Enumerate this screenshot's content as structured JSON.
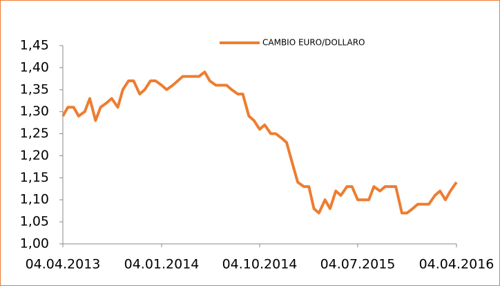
{
  "chart_data": {
    "type": "line",
    "x": [
      "04.04.2013",
      "18.04.2013",
      "04.05.2013",
      "18.05.2013",
      "04.06.2013",
      "18.06.2013",
      "04.07.2013",
      "18.07.2013",
      "04.08.2013",
      "18.08.2013",
      "04.09.2013",
      "18.09.2013",
      "04.10.2013",
      "18.10.2013",
      "04.11.2013",
      "18.11.2013",
      "04.12.2013",
      "18.12.2013",
      "04.01.2014",
      "18.01.2014",
      "04.02.2014",
      "18.02.2014",
      "04.03.2014",
      "18.03.2014",
      "04.04.2014",
      "18.04.2014",
      "04.05.2014",
      "18.05.2014",
      "04.06.2014",
      "18.06.2014",
      "04.07.2014",
      "18.07.2014",
      "04.08.2014",
      "18.08.2014",
      "04.09.2014",
      "18.09.2014",
      "04.10.2014",
      "18.10.2014",
      "04.11.2014",
      "18.11.2014",
      "04.12.2014",
      "18.12.2014",
      "04.01.2015",
      "18.01.2015",
      "04.02.2015",
      "18.02.2015",
      "04.03.2015",
      "18.03.2015",
      "04.04.2015",
      "18.04.2015",
      "04.05.2015",
      "18.05.2015",
      "04.06.2015",
      "18.06.2015",
      "04.07.2015",
      "18.07.2015",
      "04.08.2015",
      "18.08.2015",
      "04.09.2015",
      "18.09.2015",
      "04.10.2015",
      "18.10.2015",
      "04.11.2015",
      "18.11.2015",
      "04.12.2015",
      "18.12.2015",
      "04.01.2016",
      "18.01.2016",
      "04.02.2016",
      "18.02.2016",
      "04.03.2016",
      "18.03.2016",
      "04.04.2016"
    ],
    "series": [
      {
        "name": "CAMBIO EURO/DOLLARO",
        "color": "#ED7D31",
        "values": [
          1.29,
          1.31,
          1.31,
          1.29,
          1.3,
          1.33,
          1.28,
          1.31,
          1.32,
          1.33,
          1.31,
          1.35,
          1.37,
          1.37,
          1.34,
          1.35,
          1.37,
          1.37,
          1.36,
          1.35,
          1.36,
          1.37,
          1.38,
          1.38,
          1.38,
          1.38,
          1.39,
          1.37,
          1.36,
          1.36,
          1.36,
          1.35,
          1.34,
          1.34,
          1.29,
          1.28,
          1.26,
          1.27,
          1.25,
          1.25,
          1.24,
          1.23,
          1.18,
          1.14,
          1.13,
          1.13,
          1.08,
          1.07,
          1.1,
          1.08,
          1.12,
          1.11,
          1.13,
          1.13,
          1.1,
          1.1,
          1.1,
          1.13,
          1.12,
          1.13,
          1.13,
          1.13,
          1.07,
          1.07,
          1.08,
          1.09,
          1.09,
          1.09,
          1.11,
          1.12,
          1.1,
          1.12,
          1.14
        ]
      }
    ],
    "ylim": [
      1.0,
      1.45
    ],
    "yticks": [
      {
        "value": 1.0,
        "label": "1,00"
      },
      {
        "value": 1.05,
        "label": "1,05"
      },
      {
        "value": 1.1,
        "label": "1,10"
      },
      {
        "value": 1.15,
        "label": "1,15"
      },
      {
        "value": 1.2,
        "label": "1,20"
      },
      {
        "value": 1.25,
        "label": "1,25"
      },
      {
        "value": 1.3,
        "label": "1,30"
      },
      {
        "value": 1.35,
        "label": "1,35"
      },
      {
        "value": 1.4,
        "label": "1,40"
      },
      {
        "value": 1.45,
        "label": "1,45"
      }
    ],
    "xlim": [
      "04.04.2013",
      "04.04.2016"
    ],
    "xticks": [
      "04.04.2013",
      "04.01.2014",
      "04.10.2014",
      "04.07.2015",
      "04.04.2016"
    ],
    "legend": "top"
  }
}
